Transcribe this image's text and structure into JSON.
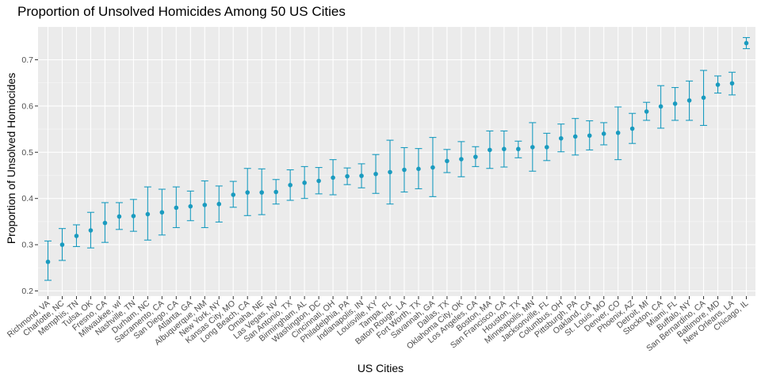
{
  "chart_data": {
    "type": "scatter",
    "title": "Proportion of Unsolved Homicides Among 50 US Cities",
    "xlabel": "US Cities",
    "ylabel": "Proportion of Unsolved Homocides",
    "ylim": [
      0.2,
      0.75
    ],
    "yticks": [
      0.2,
      0.3,
      0.4,
      0.5,
      0.6,
      0.7
    ],
    "grid": true,
    "colors": {
      "point": "#1a9bbf",
      "panel": "#ebebeb",
      "grid": "#ffffff"
    },
    "categories": [
      "Richmond, VA",
      "Charlotte, NC",
      "Memphis, TN",
      "Tulsa, OK",
      "Fresno, CA",
      "Milwaukee, wI",
      "Nashville, TN",
      "Durham, NC",
      "Sacramento, CA",
      "San Diego, CA",
      "Atlanta, GA",
      "Albuquerque, NM",
      "New York, NY",
      "Kansas City, MO",
      "Long Beach, CA",
      "Omaha, NE",
      "Las Vegas, NV",
      "San Antonio, TX",
      "Birmingham, AL",
      "Washington, DC",
      "Cincinnati, OH",
      "Philadelphia, PA",
      "Indianapolis, IN",
      "Louisville, KY",
      "Tampa, FL",
      "Baton Rouge, LA",
      "Fort Worth, TX",
      "Savannah, GA",
      "Dallas, TX",
      "Oklahoma City, OK",
      "Los Angeles, CA",
      "Boston, MA",
      "San Francisco, CA",
      "Houston, TX",
      "Minneapolis, MN",
      "Jacksonville, FL",
      "Columbus, OH",
      "Pittsburgh, PA",
      "Oakland, CA",
      "St. Louis, MO",
      "Denver, CO",
      "Phoenix, AZ",
      "Detroit, MI",
      "Stockton, CA",
      "Miami, FL",
      "Buffalo, NY",
      "San Bernardino, CA",
      "Baltimore, MD",
      "New Orleans, LA",
      "Chicago, IL"
    ],
    "estimate": [
      0.263,
      0.3,
      0.319,
      0.331,
      0.347,
      0.361,
      0.362,
      0.366,
      0.37,
      0.38,
      0.383,
      0.386,
      0.388,
      0.408,
      0.413,
      0.413,
      0.414,
      0.429,
      0.434,
      0.438,
      0.445,
      0.448,
      0.449,
      0.453,
      0.457,
      0.462,
      0.464,
      0.467,
      0.481,
      0.485,
      0.49,
      0.505,
      0.507,
      0.507,
      0.511,
      0.511,
      0.53,
      0.534,
      0.536,
      0.54,
      0.542,
      0.551,
      0.588,
      0.599,
      0.605,
      0.612,
      0.618,
      0.646,
      0.649,
      0.736
    ],
    "conf_low": [
      0.223,
      0.266,
      0.296,
      0.293,
      0.305,
      0.333,
      0.329,
      0.31,
      0.321,
      0.337,
      0.352,
      0.337,
      0.349,
      0.381,
      0.363,
      0.365,
      0.388,
      0.396,
      0.4,
      0.41,
      0.408,
      0.43,
      0.423,
      0.411,
      0.388,
      0.414,
      0.421,
      0.404,
      0.456,
      0.447,
      0.469,
      0.465,
      0.468,
      0.488,
      0.459,
      0.482,
      0.501,
      0.494,
      0.505,
      0.516,
      0.484,
      0.519,
      0.569,
      0.552,
      0.569,
      0.569,
      0.558,
      0.628,
      0.624,
      0.724
    ],
    "conf_high": [
      0.308,
      0.335,
      0.343,
      0.37,
      0.391,
      0.391,
      0.398,
      0.425,
      0.42,
      0.425,
      0.416,
      0.438,
      0.427,
      0.437,
      0.465,
      0.464,
      0.441,
      0.462,
      0.469,
      0.467,
      0.484,
      0.466,
      0.475,
      0.495,
      0.526,
      0.51,
      0.508,
      0.532,
      0.506,
      0.523,
      0.512,
      0.546,
      0.546,
      0.524,
      0.564,
      0.541,
      0.561,
      0.573,
      0.568,
      0.564,
      0.598,
      0.584,
      0.608,
      0.644,
      0.64,
      0.654,
      0.677,
      0.665,
      0.673,
      0.748
    ]
  }
}
